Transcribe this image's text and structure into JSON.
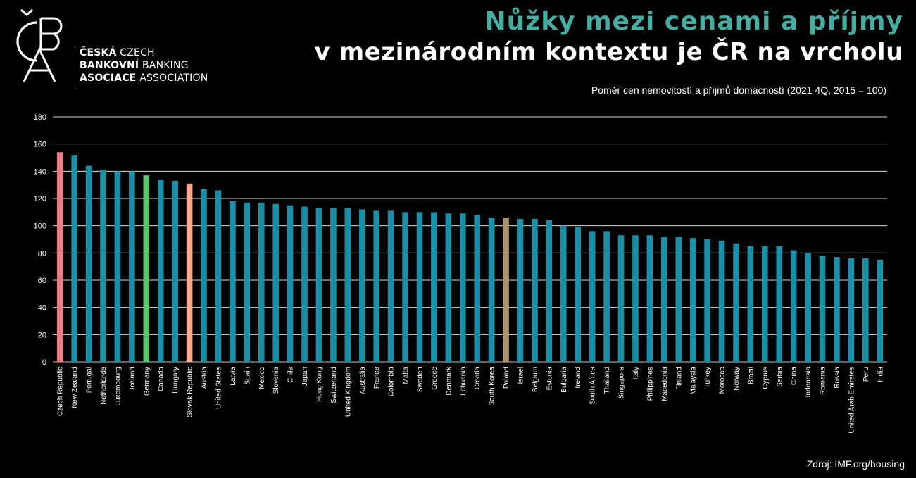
{
  "header": {
    "title_line1": "Nůžky mezi cenami a příjmy",
    "title_line2": "v mezinárodním kontextu je ČR na vrcholu",
    "subtitle": "Poměr cen nemovitostí a příjmů domácností (2021 4Q, 2015 = 100)",
    "source": "Zdroj: IMF.org/housing"
  },
  "logo": {
    "lines": [
      {
        "bold": "ČESKÁ",
        "light": "CZECH"
      },
      {
        "bold": "BANKOVNÍ",
        "light": "BANKING"
      },
      {
        "bold": "ASOCIACE",
        "light": "ASSOCIATION"
      }
    ]
  },
  "colors": {
    "default_bar": "#1a8fa8",
    "czech": "#f07a82",
    "germany": "#5cc46e",
    "slovakia": "#f9a98e",
    "poland": "#a8926a",
    "title_accent": "#45ada2"
  },
  "chart_data": {
    "type": "bar",
    "ylim": [
      0,
      180
    ],
    "yticks": [
      0,
      20,
      40,
      60,
      80,
      100,
      120,
      140,
      160,
      180
    ],
    "grid": true,
    "categories": [
      "Czech Republic",
      "New Zealand",
      "Portugal",
      "Netherlands",
      "Luxembourg",
      "Iceland",
      "Germany",
      "Canada",
      "Hungary",
      "Slovak Republic",
      "Austria",
      "United States",
      "Latvia",
      "Spain",
      "Mexico",
      "Slovenia",
      "Chile",
      "Japan",
      "Hong Kong",
      "Switzerland",
      "United Kingdom",
      "Australia",
      "France",
      "Colombia",
      "Malta",
      "Sweden",
      "Greece",
      "Denmark",
      "Lithuania",
      "Croatia",
      "South Korea",
      "Poland",
      "Israel",
      "Belgium",
      "Estonia",
      "Bulgaria",
      "Ireland",
      "South Africa",
      "Thailand",
      "Singapore",
      "Italy",
      "Philippines",
      "Macedonia",
      "Finland",
      "Malaysia",
      "Turkey",
      "Morocco",
      "Norway",
      "Brazil",
      "Cyprus",
      "Serbia",
      "China",
      "Indonesia",
      "Romania",
      "Russia",
      "United Arab Emirates",
      "Peru",
      "India"
    ],
    "values": [
      154,
      152,
      144,
      141,
      140,
      140,
      137,
      134,
      133,
      131,
      127,
      126,
      118,
      117,
      117,
      116,
      115,
      114,
      113,
      113,
      113,
      112,
      111,
      111,
      110,
      110,
      110,
      109,
      109,
      108,
      106,
      106,
      105,
      105,
      104,
      100,
      99,
      96,
      96,
      93,
      93,
      93,
      92,
      92,
      91,
      90,
      89,
      87,
      85,
      85,
      85,
      82,
      80,
      78,
      77,
      76,
      76,
      75
    ],
    "highlight": {
      "Czech Republic": "czech",
      "Germany": "germany",
      "Slovak Republic": "slovakia",
      "Poland": "poland"
    }
  }
}
